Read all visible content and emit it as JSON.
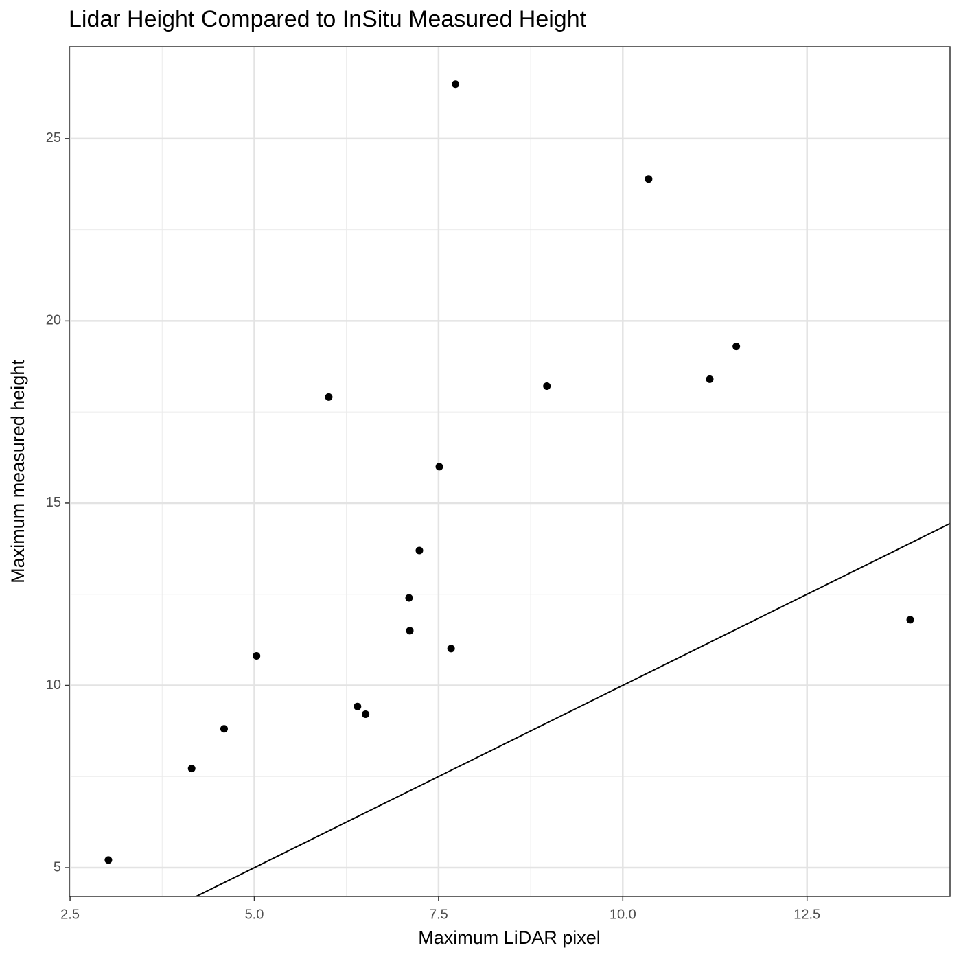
{
  "chart_data": {
    "type": "scatter",
    "title": "Lidar Height Compared to InSitu Measured Height",
    "x_label": "Maximum LiDAR pixel",
    "y_label": "Maximum measured height",
    "x": [
      7.73,
      10.35,
      11.54,
      11.18,
      8.97,
      6.01,
      7.51,
      7.24,
      7.1,
      7.11,
      7.67,
      13.9,
      5.03,
      6.4,
      6.51,
      4.59,
      4.15,
      3.02
    ],
    "values": [
      26.49,
      23.89,
      19.3,
      18.4,
      18.21,
      17.91,
      16.0,
      13.7,
      12.4,
      11.5,
      11.01,
      11.8,
      10.81,
      9.42,
      9.21,
      8.81,
      7.72,
      5.21
    ],
    "color": "#000000",
    "reference_line": {
      "slope": 1,
      "intercept": 0
    },
    "xlim": [
      2.49,
      14.44
    ],
    "ylim": [
      4.21,
      27.52
    ],
    "xticks": [
      2.5,
      {
        "value": 5,
        "label": "5.0"
      },
      7.5,
      {
        "value": 10,
        "label": "10.0"
      },
      12.5
    ],
    "yticks": [
      5,
      10,
      15,
      20,
      25
    ],
    "grid": true
  }
}
